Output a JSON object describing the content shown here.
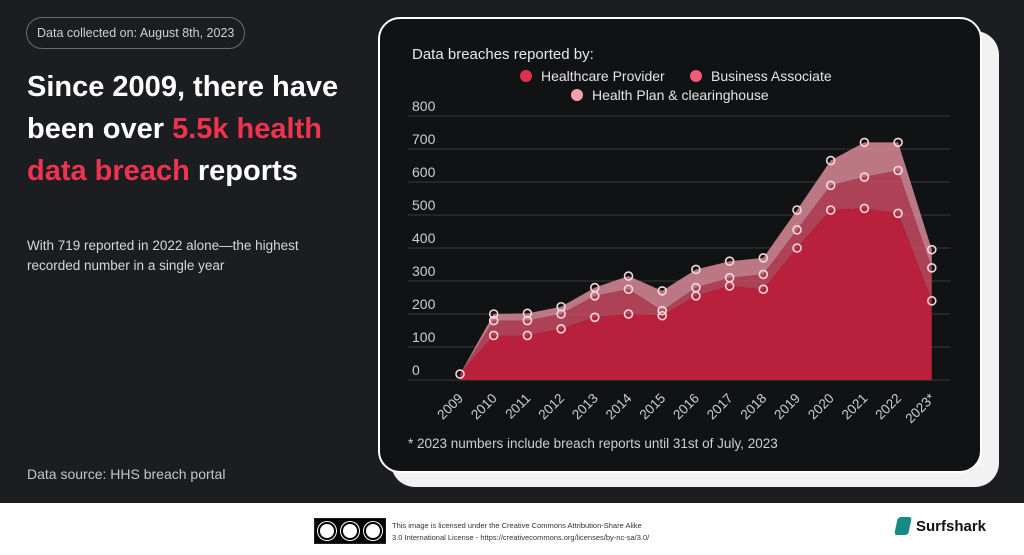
{
  "header": {
    "collected": "Data collected on: August 8th, 2023",
    "headline_part1": "Since 2009, there have been over ",
    "headline_accent": "5.5k health data breach",
    "headline_part2": " reports",
    "subtext": "With 719 reported in 2022 alone—the highest recorded number in a single year",
    "source": "Data source: HHS breach portal"
  },
  "colors": {
    "accent": "#f0334f",
    "healthcare": "#e0304d",
    "associate": "#f25a74",
    "plan": "#f3a0ad"
  },
  "chart_data": {
    "type": "area",
    "title": "Data breaches reported by:",
    "categories": [
      "2009",
      "2010",
      "2011",
      "2012",
      "2013",
      "2014",
      "2015",
      "2016",
      "2017",
      "2018",
      "2019",
      "2020",
      "2021",
      "2022",
      "2023*"
    ],
    "ylim": [
      0,
      800
    ],
    "yticks": [
      "0",
      "100",
      "200",
      "300",
      "400",
      "500",
      "600",
      "700",
      "800"
    ],
    "stacked": true,
    "series": [
      {
        "name": "Healthcare Provider",
        "values": [
          18,
          135,
          135,
          155,
          190,
          200,
          195,
          255,
          285,
          275,
          400,
          515,
          520,
          505,
          240
        ]
      },
      {
        "name": "Business Associate",
        "values": [
          0,
          45,
          45,
          45,
          65,
          75,
          15,
          25,
          25,
          45,
          55,
          75,
          95,
          130,
          100
        ]
      },
      {
        "name": "Health Plan & clearinghouse",
        "values": [
          0,
          20,
          22,
          22,
          25,
          40,
          60,
          55,
          50,
          50,
          60,
          75,
          105,
          85,
          55
        ]
      }
    ],
    "grid": true,
    "legend": "top",
    "note": "* 2023 numbers include breach reports until 31st of July, 2023"
  },
  "footer": {
    "license_line1": "This image is licensed under the Creative Commons Attribution-Share Alike",
    "license_line2": "3.0 International License - https://creativecommons.org/licenses/by-nc-sa/3.0/",
    "brand": "Surfshark",
    "cc_labels": [
      "BY",
      "NC",
      "SA"
    ]
  }
}
